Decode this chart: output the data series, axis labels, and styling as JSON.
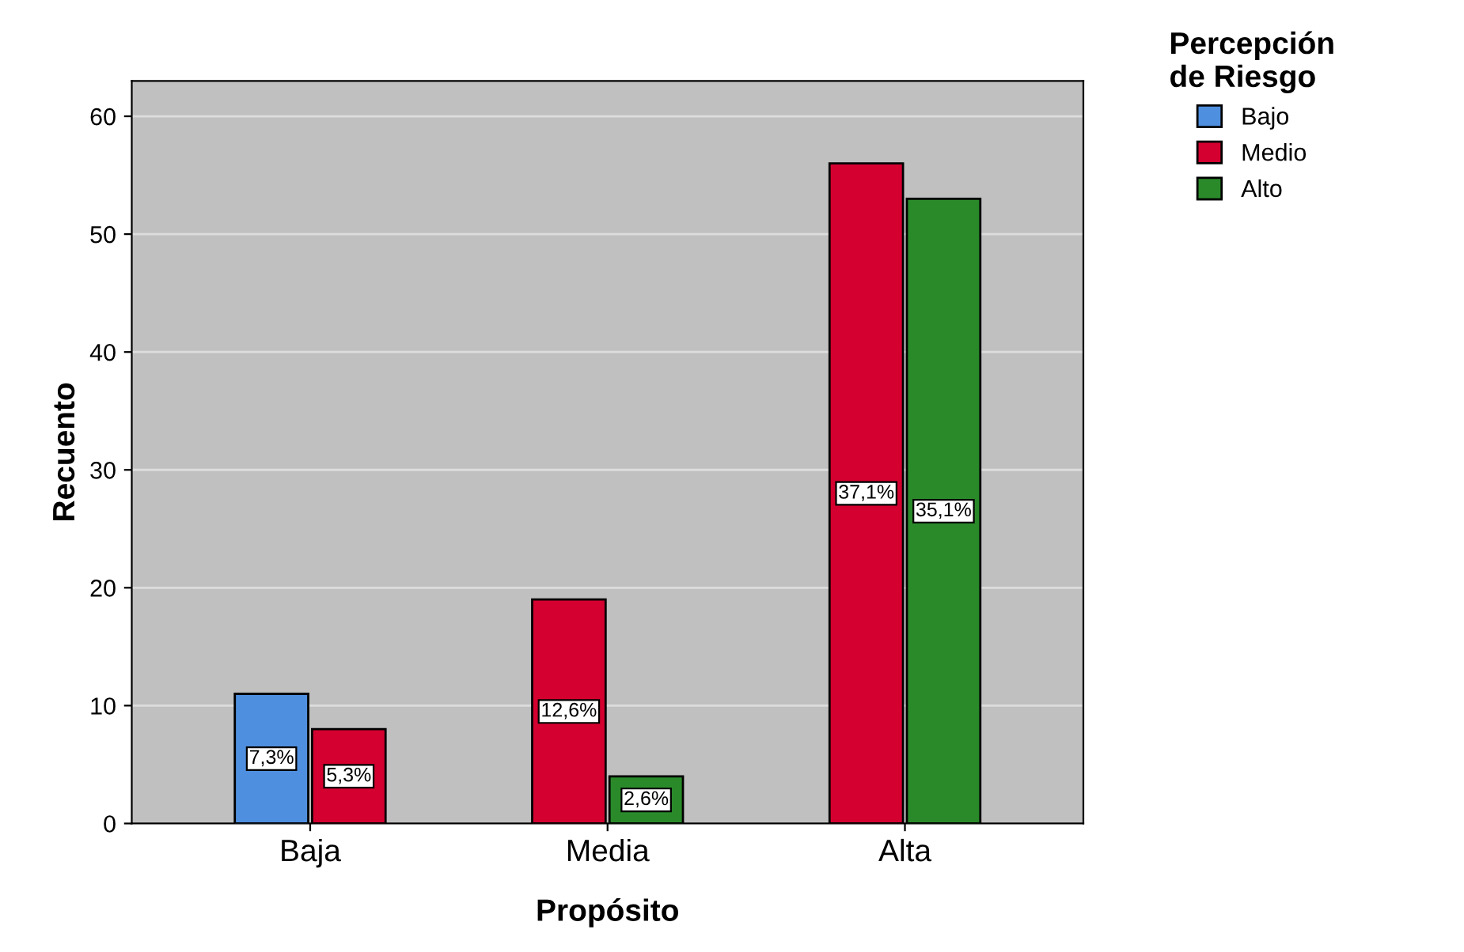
{
  "chart_data": {
    "type": "bar",
    "xlabel": "Propósito",
    "ylabel": "Recuento",
    "legend_title": "Percepción\nde Riesgo",
    "categories": [
      "Baja",
      "Media",
      "Alta"
    ],
    "series": [
      {
        "name": "Bajo",
        "color": "#4f8fdf",
        "values": [
          11,
          null,
          null
        ]
      },
      {
        "name": "Medio",
        "color": "#d4002f",
        "values": [
          8,
          19,
          56
        ]
      },
      {
        "name": "Alto",
        "color": "#2a8a2a",
        "values": [
          null,
          4,
          53
        ]
      }
    ],
    "annotations": [
      {
        "text": "7,3%",
        "x": "Baja",
        "y": 5.5
      },
      {
        "text": "5,3%",
        "x": "Baja",
        "y": 4
      },
      {
        "text": "12,6%",
        "x": "Media",
        "y": 9.5
      },
      {
        "text": "2,6%",
        "x": "Media",
        "y": 2
      },
      {
        "text": "37,1%",
        "x": "Alta",
        "y": 28
      },
      {
        "text": "35,1%",
        "x": "Alta",
        "y": 26.5
      }
    ],
    "ylim": [
      0,
      63
    ],
    "yticks": [
      0,
      10,
      20,
      30,
      40,
      50,
      60
    ],
    "grid": "y",
    "legend": "top right"
  }
}
